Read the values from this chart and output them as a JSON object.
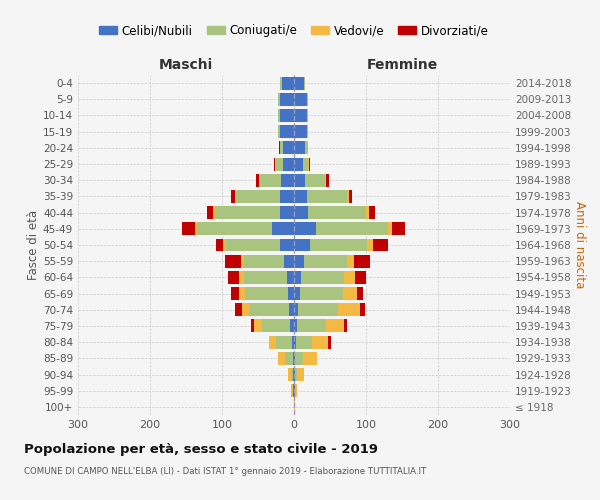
{
  "age_groups": [
    "100+",
    "95-99",
    "90-94",
    "85-89",
    "80-84",
    "75-79",
    "70-74",
    "65-69",
    "60-64",
    "55-59",
    "50-54",
    "45-49",
    "40-44",
    "35-39",
    "30-34",
    "25-29",
    "20-24",
    "15-19",
    "10-14",
    "5-9",
    "0-4"
  ],
  "birth_years": [
    "≤ 1918",
    "1919-1923",
    "1924-1928",
    "1929-1933",
    "1934-1938",
    "1939-1943",
    "1944-1948",
    "1949-1953",
    "1954-1958",
    "1959-1963",
    "1964-1968",
    "1969-1973",
    "1974-1978",
    "1979-1983",
    "1984-1988",
    "1989-1993",
    "1994-1998",
    "1999-2003",
    "2004-2008",
    "2009-2013",
    "2014-2018"
  ],
  "maschi_celibi": [
    0,
    1,
    1,
    2,
    3,
    5,
    7,
    8,
    10,
    14,
    20,
    30,
    20,
    20,
    18,
    15,
    15,
    20,
    20,
    20,
    17
  ],
  "maschi_coniugati": [
    0,
    1,
    3,
    10,
    22,
    40,
    55,
    60,
    60,
    55,
    75,
    105,
    90,
    60,
    30,
    10,
    5,
    2,
    2,
    2,
    2
  ],
  "maschi_vedovi": [
    0,
    2,
    5,
    10,
    10,
    10,
    10,
    8,
    6,
    5,
    4,
    3,
    3,
    2,
    1,
    1,
    0,
    0,
    0,
    0,
    0
  ],
  "maschi_divorziati": [
    0,
    0,
    0,
    0,
    0,
    5,
    10,
    12,
    15,
    22,
    10,
    18,
    8,
    5,
    4,
    2,
    1,
    0,
    0,
    0,
    0
  ],
  "femmine_celibi": [
    0,
    1,
    1,
    2,
    3,
    4,
    6,
    8,
    10,
    14,
    22,
    30,
    20,
    18,
    15,
    12,
    15,
    18,
    18,
    18,
    14
  ],
  "femmine_coniugati": [
    0,
    0,
    3,
    10,
    22,
    40,
    55,
    60,
    60,
    60,
    80,
    100,
    80,
    55,
    28,
    8,
    4,
    2,
    2,
    2,
    1
  ],
  "femmine_vedovi": [
    1,
    3,
    10,
    20,
    22,
    25,
    30,
    20,
    15,
    10,
    8,
    6,
    4,
    3,
    2,
    1,
    0,
    0,
    0,
    0,
    0
  ],
  "femmine_divorziati": [
    0,
    0,
    0,
    0,
    5,
    5,
    8,
    8,
    15,
    22,
    20,
    18,
    8,
    5,
    3,
    1,
    1,
    0,
    0,
    0,
    0
  ],
  "color_celibi": "#4472C4",
  "color_coniugati": "#A9C47F",
  "color_vedovi": "#F4B942",
  "color_divorziati": "#C00000",
  "title": "Popolazione per età, sesso e stato civile - 2019",
  "subtitle": "COMUNE DI CAMPO NELL'ELBA (LI) - Dati ISTAT 1° gennaio 2019 - Elaborazione TUTTITALIA.IT",
  "xlabel_left": "Maschi",
  "xlabel_right": "Femmine",
  "ylabel_left": "Fasce di età",
  "ylabel_right": "Anni di nascita",
  "xlim": 300,
  "bg_color": "#f5f5f5",
  "grid_color": "#cccccc"
}
